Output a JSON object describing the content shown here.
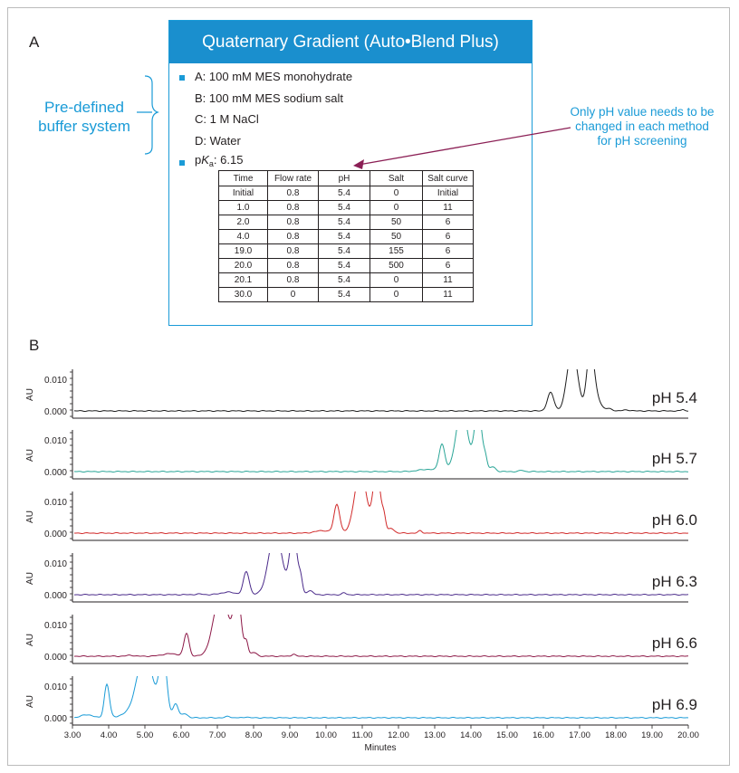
{
  "panel_a": {
    "letter": "A",
    "box_title": "Quaternary Gradient (Auto•Blend Plus)",
    "buffer_lines": [
      "A: 100 mM MES monohydrate",
      "B: 100 mM MES sodium salt",
      "C: 1 M NaCl",
      "D: Water"
    ],
    "pka_prefix": "p",
    "pka_symbol": "K",
    "pka_sub": "a",
    "pka_value": ": 6.15",
    "predefined_label": [
      "Pre-defined",
      "buffer system"
    ],
    "callout": [
      "Only pH value needs to be",
      "changed in each method",
      "for pH screening"
    ],
    "table": {
      "headers": [
        "Time",
        "Flow rate",
        "pH",
        "Salt",
        "Salt curve"
      ],
      "rows": [
        [
          "Initial",
          "0.8",
          "5.4",
          "0",
          "Initial"
        ],
        [
          "1.0",
          "0.8",
          "5.4",
          "0",
          "11"
        ],
        [
          "2.0",
          "0.8",
          "5.4",
          "50",
          "6"
        ],
        [
          "4.0",
          "0.8",
          "5.4",
          "50",
          "6"
        ],
        [
          "19.0",
          "0.8",
          "5.4",
          "155",
          "6"
        ],
        [
          "20.0",
          "0.8",
          "5.4",
          "500",
          "6"
        ],
        [
          "20.1",
          "0.8",
          "5.4",
          "0",
          "11"
        ],
        [
          "30.0",
          "0",
          "5.4",
          "0",
          "11"
        ]
      ]
    }
  },
  "panel_b": {
    "letter": "B"
  },
  "colors": {
    "accent_blue": "#1a9bd7",
    "title_bar": "#1a8fce",
    "callout_arrow": "#8b1f55"
  },
  "chart_data": {
    "type": "line",
    "xlabel": "Minutes",
    "ylabel": "AU",
    "xlim": [
      3.0,
      20.0
    ],
    "xticks": [
      "3.00",
      "4.00",
      "5.00",
      "6.00",
      "7.00",
      "8.00",
      "9.00",
      "10.00",
      "11.00",
      "12.00",
      "13.00",
      "14.00",
      "15.00",
      "16.00",
      "17.00",
      "18.00",
      "19.00",
      "20.00"
    ],
    "ylim": [
      -0.002,
      0.012
    ],
    "yticks": [
      "0.000",
      "0.010"
    ],
    "series": [
      {
        "name": "pH 5.4",
        "color": "#1c1c1c",
        "baseline": 0.0,
        "peaks": [
          [
            16.2,
            0.0058,
            0.09
          ],
          [
            16.8,
            0.02,
            0.14
          ],
          [
            17.3,
            0.02,
            0.1
          ],
          [
            17.5,
            0.003,
            0.1
          ],
          [
            17.8,
            0.0007,
            0.1
          ],
          [
            18.3,
            0.0003,
            0.1
          ],
          [
            19.85,
            0.0005,
            0.04
          ]
        ]
      },
      {
        "name": "pH 5.7",
        "color": "#2aa597",
        "baseline": 0.0,
        "peaks": [
          [
            13.2,
            0.0085,
            0.08
          ],
          [
            13.75,
            0.02,
            0.16
          ],
          [
            14.2,
            0.02,
            0.1
          ],
          [
            14.4,
            0.0035,
            0.05
          ],
          [
            14.6,
            0.0015,
            0.08
          ],
          [
            12.8,
            0.0007,
            0.25
          ],
          [
            15.4,
            0.0004,
            0.06
          ]
        ]
      },
      {
        "name": "pH 6.0",
        "color": "#d12a2a",
        "baseline": 0.0,
        "peaks": [
          [
            10.3,
            0.009,
            0.08
          ],
          [
            10.95,
            0.02,
            0.16
          ],
          [
            11.4,
            0.02,
            0.1
          ],
          [
            11.6,
            0.0045,
            0.05
          ],
          [
            11.8,
            0.0015,
            0.08
          ],
          [
            9.9,
            0.0008,
            0.2
          ],
          [
            12.6,
            0.0008,
            0.05
          ]
        ]
      },
      {
        "name": "pH 6.3",
        "color": "#4a2a8a",
        "baseline": 0.0,
        "peaks": [
          [
            7.8,
            0.0073,
            0.08
          ],
          [
            8.6,
            0.02,
            0.18
          ],
          [
            9.1,
            0.02,
            0.1
          ],
          [
            9.3,
            0.0045,
            0.05
          ],
          [
            9.55,
            0.0013,
            0.08
          ],
          [
            7.3,
            0.0008,
            0.2
          ],
          [
            10.5,
            0.0006,
            0.05
          ],
          [
            6.5,
            0.0002,
            0.1
          ]
        ]
      },
      {
        "name": "pH 6.6",
        "color": "#8c1746",
        "baseline": 0.0,
        "peaks": [
          [
            6.15,
            0.0072,
            0.07
          ],
          [
            7.1,
            0.02,
            0.2
          ],
          [
            7.55,
            0.02,
            0.1
          ],
          [
            7.8,
            0.0045,
            0.05
          ],
          [
            8.0,
            0.0012,
            0.08
          ],
          [
            5.7,
            0.0008,
            0.22
          ],
          [
            4.6,
            0.0003,
            0.1
          ],
          [
            9.1,
            0.0007,
            0.05
          ]
        ]
      },
      {
        "name": "pH 6.9",
        "color": "#1a9bd7",
        "baseline": 0.0,
        "peaks": [
          [
            3.95,
            0.0105,
            0.07
          ],
          [
            5.0,
            0.02,
            0.22
          ],
          [
            5.5,
            0.02,
            0.1
          ],
          [
            5.85,
            0.0045,
            0.07
          ],
          [
            6.1,
            0.0013,
            0.08
          ],
          [
            3.4,
            0.001,
            0.15
          ],
          [
            4.5,
            0.0008,
            0.25
          ],
          [
            7.3,
            0.0005,
            0.06
          ],
          [
            7.8,
            0.0003,
            0.05
          ]
        ]
      }
    ]
  }
}
